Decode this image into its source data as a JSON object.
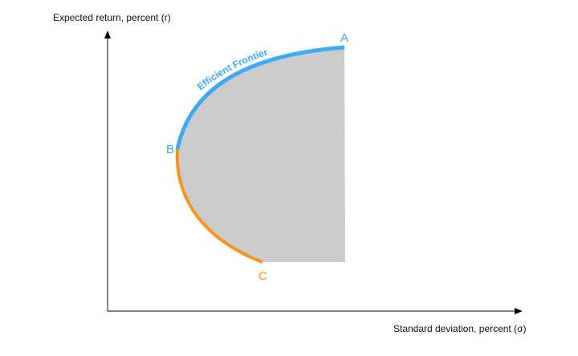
{
  "diagram": {
    "y_axis_label": "Expected return, percent (r)",
    "x_axis_label": "Standard deviation, percent (σ)",
    "curve_label": "Efficient Frontier",
    "points": {
      "a": "A",
      "b": "B",
      "c": "C"
    },
    "colors": {
      "efficient_frontier": "#3fa9f5",
      "inefficient_segment": "#f7931e",
      "feasible_region": "#cccccc",
      "axes": "#000000"
    }
  }
}
